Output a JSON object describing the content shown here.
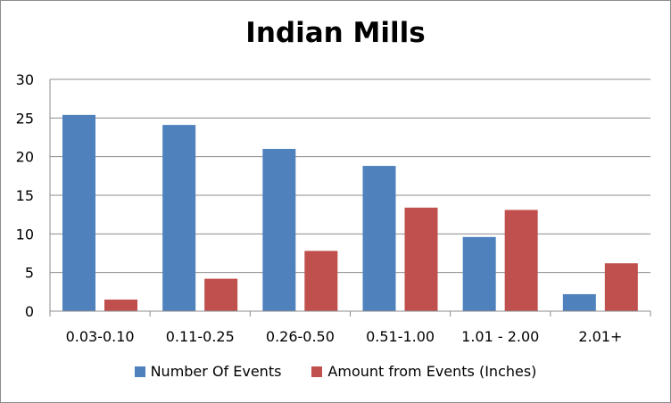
{
  "chart_data": {
    "type": "bar",
    "title": "Indian Mills",
    "xlabel": "",
    "ylabel": "",
    "ylim": [
      0,
      30
    ],
    "yticks": [
      0,
      5,
      10,
      15,
      20,
      25,
      30
    ],
    "grid": true,
    "legend_position": "bottom",
    "categories": [
      "0.03-0.10",
      "0.11-0.25",
      "0.26-0.50",
      "0.51-1.00",
      "1.01 - 2.00",
      "2.01+"
    ],
    "series": [
      {
        "name": "Number Of Events",
        "color": "#4f81bd",
        "values": [
          25.4,
          24.1,
          21.0,
          18.8,
          9.6,
          2.2
        ]
      },
      {
        "name": "Amount from Events (Inches)",
        "color": "#c0504d",
        "values": [
          1.5,
          4.2,
          7.8,
          13.4,
          13.1,
          6.2
        ]
      }
    ]
  }
}
